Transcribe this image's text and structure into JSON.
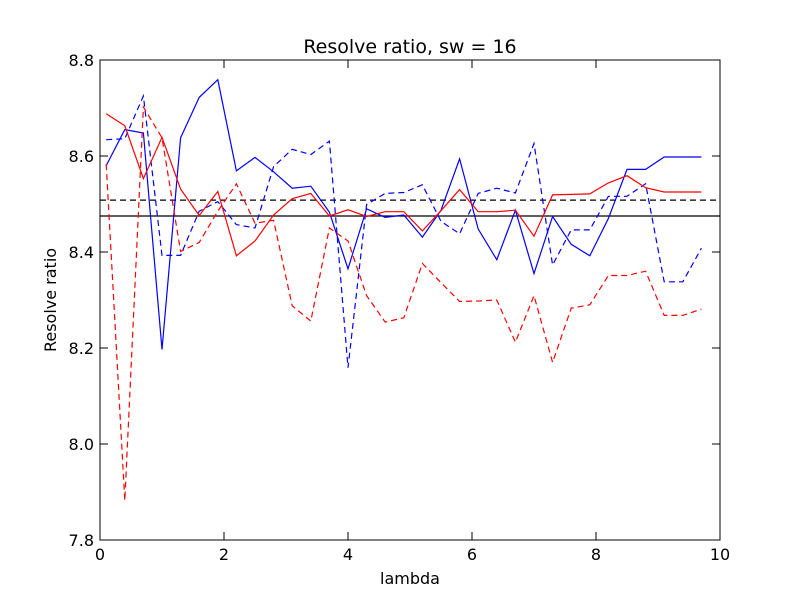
{
  "chart_data": {
    "type": "line",
    "title": "Resolve ratio, sw = 16",
    "xlabel": "lambda",
    "ylabel": "Resolve ratio",
    "xlim": [
      0,
      10
    ],
    "ylim": [
      7.8,
      8.8
    ],
    "xticks": [
      "0",
      "2",
      "4",
      "6",
      "8",
      "10"
    ],
    "yticks": [
      "7.8",
      "8.0",
      "8.2",
      "8.4",
      "8.6",
      "8.8"
    ],
    "grid": false,
    "legend": "none",
    "x": [
      0.1,
      0.4,
      0.7,
      1.0,
      1.3,
      1.6,
      1.9,
      2.2,
      2.5,
      2.8,
      3.1,
      3.4,
      3.7,
      4.0,
      4.3,
      4.6,
      4.9,
      5.2,
      5.5,
      5.8,
      6.1,
      6.4,
      6.7,
      7.0,
      7.3,
      7.6,
      7.9,
      8.2,
      8.5,
      8.8,
      9.1,
      9.4,
      9.7
    ],
    "series": [
      {
        "color": "#0000ff",
        "dash": "solid",
        "values": [
          8.58,
          8.655,
          8.648,
          8.197,
          8.638,
          8.722,
          8.759,
          8.569,
          8.597,
          8.567,
          8.533,
          8.537,
          8.483,
          8.365,
          8.49,
          8.472,
          8.477,
          8.431,
          8.487,
          8.594,
          8.448,
          8.384,
          8.487,
          8.355,
          8.474,
          8.416,
          8.392,
          8.47,
          8.572,
          8.572,
          8.598,
          8.598,
          8.598
        ]
      },
      {
        "color": "#0000ff",
        "dash": "dashed",
        "values": [
          8.634,
          8.636,
          8.725,
          8.393,
          8.393,
          8.485,
          8.505,
          8.457,
          8.45,
          8.578,
          8.614,
          8.603,
          8.631,
          8.159,
          8.499,
          8.522,
          8.524,
          8.54,
          8.464,
          8.438,
          8.522,
          8.533,
          8.523,
          8.626,
          8.373,
          8.446,
          8.446,
          8.516,
          8.516,
          8.542,
          8.338,
          8.338,
          8.408
        ]
      },
      {
        "color": "#ff0000",
        "dash": "solid",
        "values": [
          8.688,
          8.663,
          8.553,
          8.639,
          8.531,
          8.476,
          8.526,
          8.392,
          8.423,
          8.477,
          8.511,
          8.522,
          8.475,
          8.488,
          8.474,
          8.484,
          8.484,
          8.444,
          8.486,
          8.53,
          8.484,
          8.484,
          8.487,
          8.433,
          8.519,
          8.52,
          8.521,
          8.544,
          8.559,
          8.534,
          8.525,
          8.525,
          8.525
        ]
      },
      {
        "color": "#ff0000",
        "dash": "dashed",
        "values": [
          8.583,
          7.882,
          8.702,
          8.638,
          8.401,
          8.42,
          8.485,
          8.542,
          8.46,
          8.466,
          8.288,
          8.256,
          8.45,
          8.423,
          8.309,
          8.254,
          8.263,
          8.376,
          8.336,
          8.297,
          8.298,
          8.3,
          8.212,
          8.309,
          8.17,
          8.283,
          8.29,
          8.351,
          8.351,
          8.36,
          8.268,
          8.268,
          8.281
        ]
      }
    ],
    "hlines": [
      {
        "y": 8.475,
        "color": "#000000",
        "dash": "solid"
      },
      {
        "y": 8.508,
        "color": "#000000",
        "dash": "dashed"
      }
    ]
  }
}
